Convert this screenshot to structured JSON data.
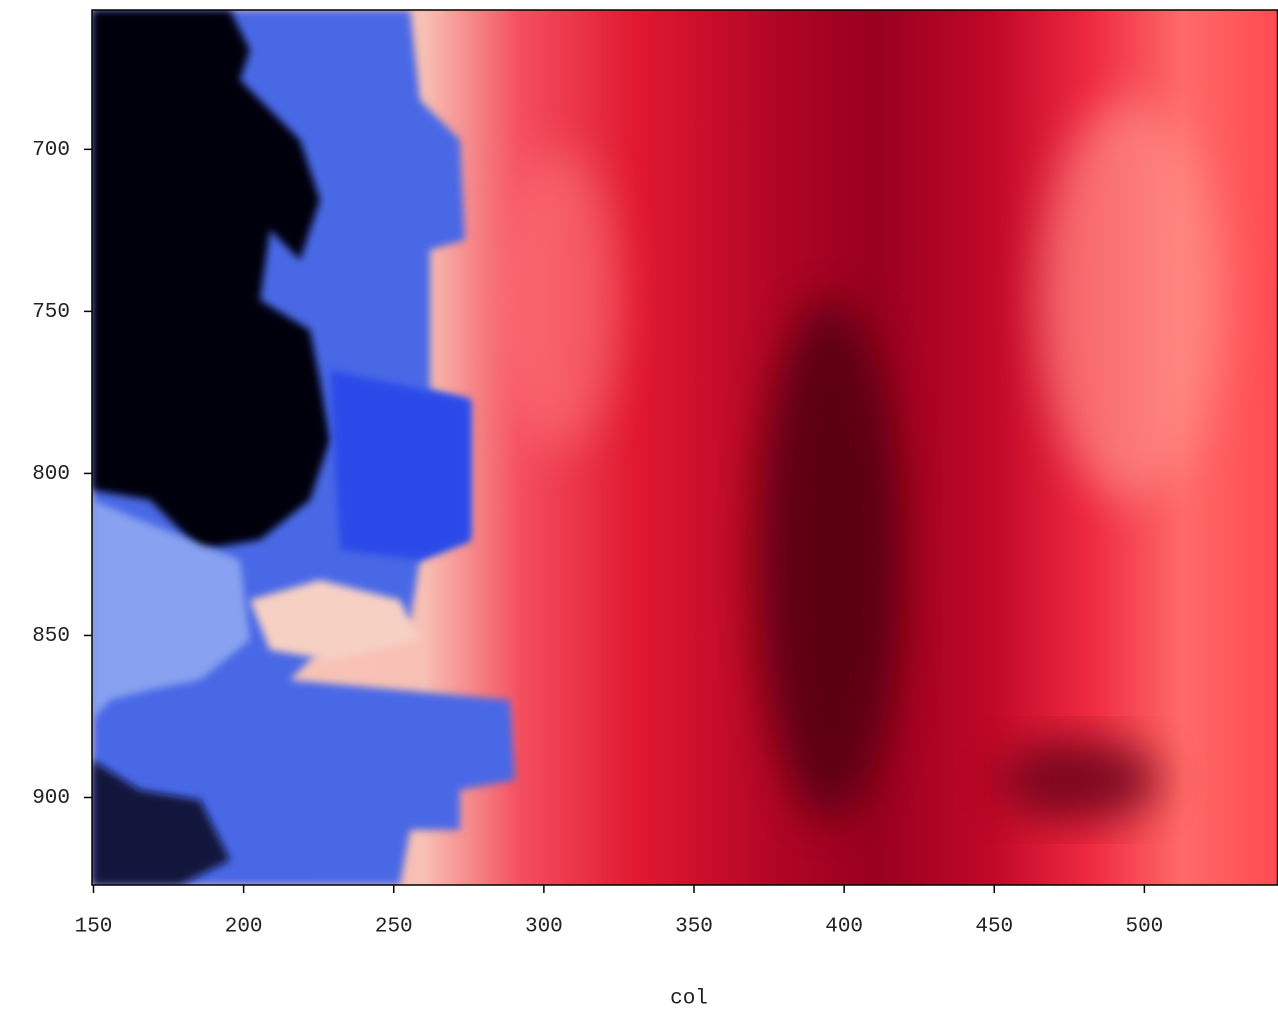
{
  "chart_data": {
    "type": "heatmap",
    "xlabel": "col",
    "xlim": [
      149.5,
      544.5
    ],
    "xticks": [
      150,
      200,
      250,
      300,
      350,
      400,
      450,
      500
    ],
    "ylim": [
      657,
      927
    ],
    "yticks": [
      700,
      750,
      800,
      850,
      900
    ],
    "yreversed": true
  }
}
